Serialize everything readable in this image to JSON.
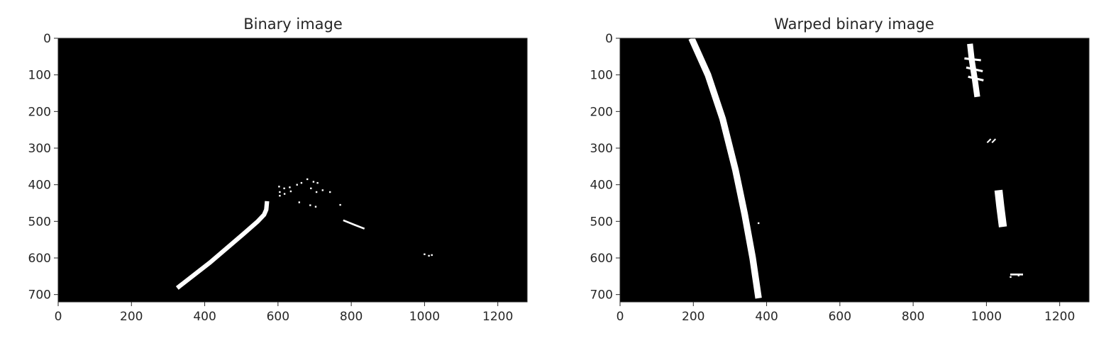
{
  "chart_data": [
    {
      "type": "image",
      "title": "Binary image",
      "xlabel": "",
      "ylabel": "",
      "xlim": [
        0,
        1280
      ],
      "ylim": [
        720,
        0
      ],
      "xticks": [
        "0",
        "200",
        "400",
        "600",
        "800",
        "1000",
        "1200"
      ],
      "yticks": [
        "0",
        "100",
        "200",
        "300",
        "400",
        "500",
        "600",
        "700"
      ],
      "background": "#000000",
      "foreground": "#ffffff",
      "strokes": [
        {
          "points": [
            [
              325,
              682
            ],
            [
              415,
              612
            ],
            [
              505,
              535
            ],
            [
              545,
              500
            ],
            [
              562,
              482
            ],
            [
              568,
              468
            ],
            [
              570,
              445
            ]
          ],
          "width": 12
        },
        {
          "points": [
            [
              778,
              497
            ],
            [
              810,
              510
            ],
            [
              836,
              520
            ]
          ],
          "width": 5
        }
      ],
      "dots": [
        [
          603,
          405
        ],
        [
          617,
          410
        ],
        [
          632,
          407
        ],
        [
          605,
          420
        ],
        [
          618,
          425
        ],
        [
          652,
          400
        ],
        [
          664,
          395
        ],
        [
          680,
          385
        ],
        [
          697,
          392
        ],
        [
          708,
          395
        ],
        [
          690,
          410
        ],
        [
          705,
          420
        ],
        [
          722,
          415
        ],
        [
          742,
          420
        ],
        [
          658,
          448
        ],
        [
          688,
          456
        ],
        [
          703,
          460
        ],
        [
          770,
          455
        ],
        [
          605,
          430
        ],
        [
          635,
          418
        ],
        [
          1000,
          590
        ],
        [
          1012,
          594
        ],
        [
          1020,
          592
        ]
      ]
    },
    {
      "type": "image",
      "title": "Warped binary image",
      "xlabel": "",
      "ylabel": "",
      "xlim": [
        0,
        1280
      ],
      "ylim": [
        720,
        0
      ],
      "xticks": [
        "0",
        "200",
        "400",
        "600",
        "800",
        "1000",
        "1200"
      ],
      "yticks": [
        "0",
        "100",
        "200",
        "300",
        "400",
        "500",
        "600",
        "700"
      ],
      "background": "#000000",
      "foreground": "#ffffff",
      "strokes": [
        {
          "points": [
            [
              195,
              0
            ],
            [
              240,
              100
            ],
            [
              280,
              220
            ],
            [
              315,
              360
            ],
            [
              340,
              480
            ],
            [
              362,
              600
            ],
            [
              378,
              710
            ]
          ],
          "width": 18
        },
        {
          "points": [
            [
              955,
              15
            ],
            [
              960,
              60
            ],
            [
              968,
              110
            ],
            [
              975,
              160
            ]
          ],
          "width": 16
        },
        {
          "points": [
            [
              940,
              55
            ],
            [
              985,
              60
            ]
          ],
          "width": 6
        },
        {
          "points": [
            [
              945,
              80
            ],
            [
              990,
              90
            ]
          ],
          "width": 6
        },
        {
          "points": [
            [
              950,
              105
            ],
            [
              992,
              115
            ]
          ],
          "width": 6
        },
        {
          "points": [
            [
              1002,
              285
            ],
            [
              1012,
              275
            ]
          ],
          "width": 4
        },
        {
          "points": [
            [
              1015,
              285
            ],
            [
              1025,
              275
            ]
          ],
          "width": 4
        },
        {
          "points": [
            [
              1033,
              415
            ],
            [
              1038,
              460
            ],
            [
              1045,
              515
            ]
          ],
          "width": 22
        },
        {
          "points": [
            [
              1065,
              645
            ],
            [
              1100,
              645
            ]
          ],
          "width": 5
        }
      ],
      "dots": [
        [
          378,
          505
        ],
        [
          1066,
          652
        ],
        [
          1088,
          648
        ]
      ]
    }
  ]
}
